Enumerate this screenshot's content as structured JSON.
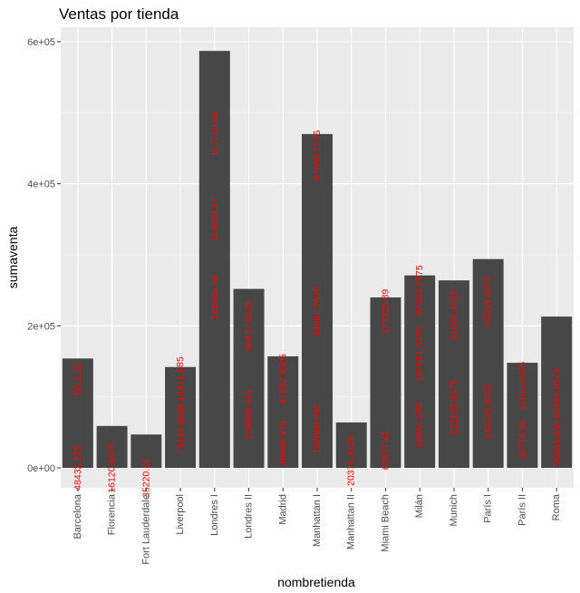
{
  "chart_data": {
    "type": "bar",
    "title": "Ventas por tienda",
    "xlabel": "nombretienda",
    "ylabel": "sumaventa",
    "ylim": [
      -28000,
      600000
    ],
    "yticks": [
      0,
      200000,
      400000,
      600000
    ],
    "ytick_labels": [
      "0e+00",
      "2e+05",
      "4e+05",
      "6e+05"
    ],
    "grid": true,
    "panel_background": "#ebebeb",
    "bar_color": "#474747",
    "label_color": "#ff0000",
    "categories": [
      "Barcelona",
      "Florencia",
      "Fort Lauderdale",
      "Liverpool",
      "Londres I",
      "Londres II",
      "Madrid",
      "Manhattan I",
      "Manhattan II",
      "Miami Beach",
      "Milán",
      "Munich",
      "París I",
      "París II",
      "Roma"
    ],
    "values": [
      154000,
      59000,
      47000,
      142000,
      587000,
      252000,
      157000,
      470000,
      64000,
      240000,
      271000,
      264000,
      294000,
      148000,
      213000
    ],
    "bar_labels": [
      [
        {
          "text": "48432.275",
          "at": 0
        },
        {
          "text": "80.1.22",
          "at": 125000
        }
      ],
      [
        {
          "text": "16120.4875",
          "at": 0
        }
      ],
      [
        {
          "text": "35220.65",
          "at": -14000
        }
      ],
      [
        {
          "text": "75134.2628",
          "at": 55000
        },
        {
          "text": "14271.585",
          "at": 125000
        }
      ],
      [
        {
          "text": "157750.69",
          "at": 470000
        },
        {
          "text": "118659.17",
          "at": 350000
        },
        {
          "text": "148965.58",
          "at": 240000
        }
      ],
      [
        {
          "text": "129888.425",
          "at": 75000
        },
        {
          "text": "68447.0125",
          "at": 200000
        }
      ],
      [
        {
          "text": "46540.975",
          "at": 35000
        },
        {
          "text": "41232.9625",
          "at": 125000
        }
      ],
      [
        {
          "text": "136866.555",
          "at": 55000
        },
        {
          "text": "44662.7625",
          "at": 220000
        },
        {
          "text": "67658.1275",
          "at": 440000
        }
      ],
      [
        {
          "text": "20371.4425",
          "at": 10000
        }
      ],
      [
        {
          "text": "63637.41",
          "at": 25000
        },
        {
          "text": "173325.89",
          "at": 220000
        }
      ],
      [
        {
          "text": "48861.695",
          "at": 60000
        },
        {
          "text": "107661.0375",
          "at": 160000
        },
        {
          "text": "82483.2775",
          "at": 250000
        }
      ],
      [
        {
          "text": "122192.8175",
          "at": 85000
        },
        {
          "text": "61666.4025",
          "at": 215000
        }
      ],
      [
        {
          "text": "142229.4825",
          "at": 80000
        },
        {
          "text": "63598.6575",
          "at": 235000
        }
      ],
      [
        {
          "text": "35776.85",
          "at": 40000
        },
        {
          "text": "11166.6225",
          "at": 115000
        }
      ],
      [
        {
          "text": "96651.535",
          "at": 35000
        },
        {
          "text": "65564.9575",
          "at": 105000
        }
      ]
    ]
  }
}
